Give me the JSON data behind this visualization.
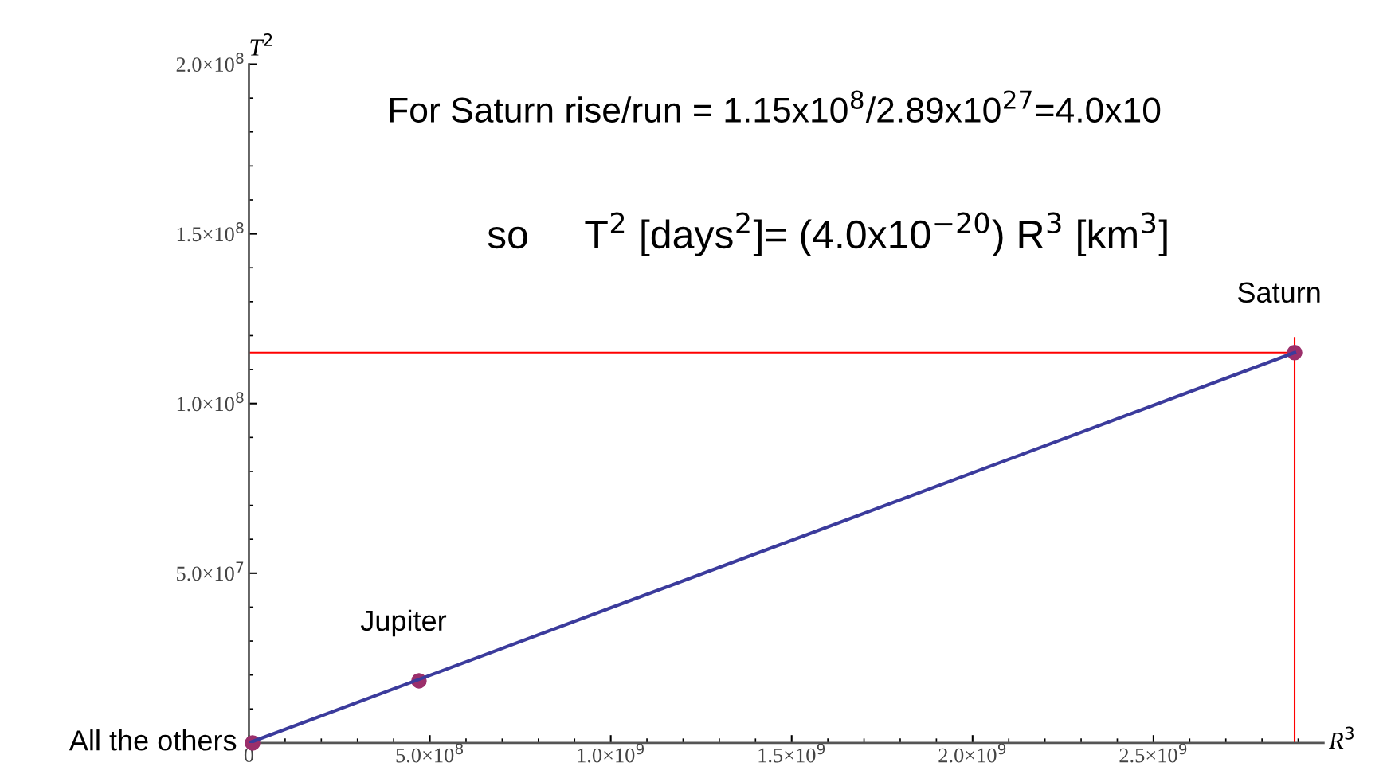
{
  "chart_data": {
    "type": "scatter",
    "xlabel": "R$^{3}$",
    "ylabel": "T$^{2}$",
    "xlim": [
      0,
      2970000000.0
    ],
    "ylim": [
      0,
      200000000.0
    ],
    "xticks": [
      {
        "value": 0,
        "label": "0"
      },
      {
        "value": 500000000.0,
        "label": "5.0×10$^{8}$"
      },
      {
        "value": 1000000000.0,
        "label": "1.0×10$^{9}$"
      },
      {
        "value": 1500000000.0,
        "label": "1.5×10$^{9}$"
      },
      {
        "value": 2000000000.0,
        "label": "2.0×10$^{9}$"
      },
      {
        "value": 2500000000.0,
        "label": "2.5×10$^{9}$"
      }
    ],
    "yticks": [
      {
        "value": 50000000.0,
        "label": "5.0×10$^{7}$"
      },
      {
        "value": 100000000.0,
        "label": "1.0×10$^{8}$"
      },
      {
        "value": 150000000.0,
        "label": "1.5×10$^{8}$"
      },
      {
        "value": 200000000.0,
        "label": "2.0×10$^{8}$"
      }
    ],
    "series": [
      {
        "type": "line",
        "marker": "none",
        "color": "#3b3b9c",
        "x": [
          0,
          2890000000.0
        ],
        "values": [
          0,
          115000000.0
        ]
      },
      {
        "color": "#9b2f6b",
        "x": [
          10000000.0,
          470000000.0,
          2890000000.0
        ],
        "values": [
          0,
          18300000.0,
          115000000.0
        ]
      }
    ],
    "marker": "circle",
    "ref_lines": [
      {
        "axis": "y",
        "value": 115000000.0,
        "color": "#ff0000"
      },
      {
        "axis": "x",
        "value": 2890000000.0,
        "color": "#ff0000"
      }
    ],
    "annotations": [
      "For Saturn rise/run = 1.15x10$^{8}$/2.89x10$^{27}$=4.0x10",
      "so     T$^{2}$ [days$^{2}$]= (4.0x10$^{−20}$) R$^{3}$ [km$^{3}$]",
      {
        "text": "All the others",
        "x": 10000000.0,
        "y": 0
      },
      {
        "text": "Jupiter",
        "x": 470000000.0,
        "y": 18300000.0
      },
      {
        "text": "Saturn",
        "x": 2890000000.0,
        "y": 115000000.0
      }
    ]
  }
}
